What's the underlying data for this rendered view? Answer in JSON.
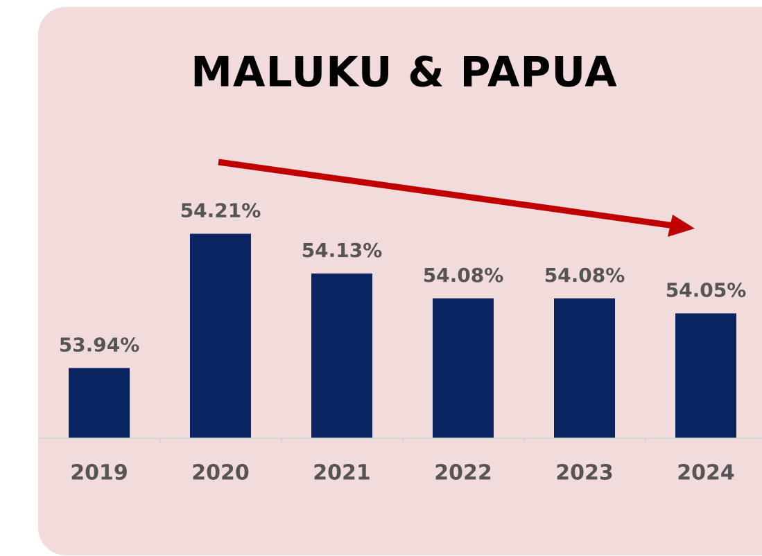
{
  "chart_data": {
    "type": "bar",
    "title": "MALUKU & PAPUA",
    "categories": [
      "2019",
      "2020",
      "2021",
      "2022",
      "2023",
      "2024"
    ],
    "values": [
      53.94,
      54.21,
      54.13,
      54.08,
      54.08,
      54.05
    ],
    "value_labels": [
      "53.94%",
      "54.21%",
      "54.13%",
      "54.08%",
      "54.08%",
      "54.05%"
    ],
    "color": "#0a2461",
    "ylim": [
      53.8,
      54.3
    ]
  }
}
